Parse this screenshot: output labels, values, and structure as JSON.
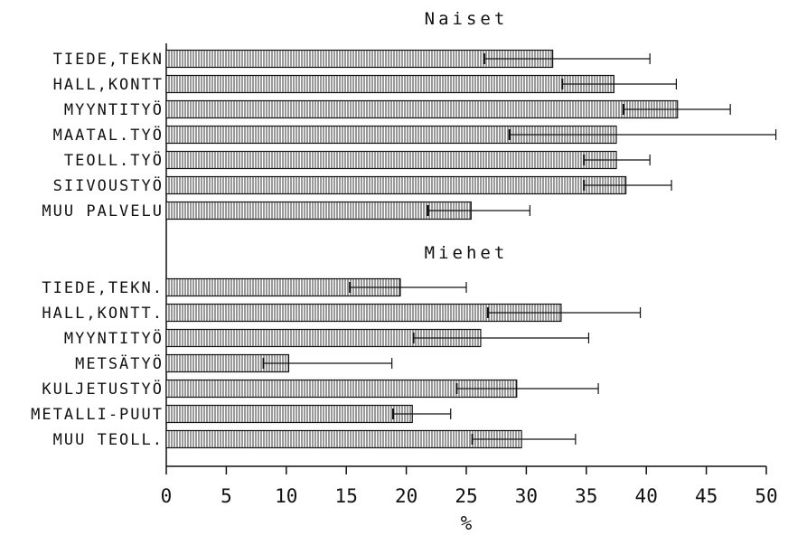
{
  "chart_data": {
    "type": "bar",
    "orientation": "horizontal",
    "xlabel": "%",
    "xlim": [
      0,
      50
    ],
    "xticks": [
      "0",
      "5",
      "10",
      "15",
      "20",
      "25",
      "30",
      "35",
      "40",
      "45",
      "50"
    ],
    "grid": false,
    "legend": "none",
    "groups": [
      {
        "name": "Naiset",
        "categories": [
          "TIEDE,TEKN",
          "HALL,KONTT",
          "MYYNTITYÖ",
          "MAATAL.TYÖ",
          "TEOLL.TYÖ",
          "SIIVOUSTYÖ",
          "MUU PALVELU"
        ],
        "values": [
          32.2,
          37.3,
          42.6,
          37.5,
          37.5,
          38.3,
          25.4
        ],
        "err_low": [
          26.5,
          33.0,
          38.1,
          28.6,
          34.8,
          34.8,
          21.8
        ],
        "err_high": [
          40.3,
          42.5,
          47.0,
          50.8,
          40.3,
          42.1,
          30.3
        ]
      },
      {
        "name": "Miehet",
        "categories": [
          "TIEDE,TEKN.",
          "HALL,KONTT.",
          "MYYNTITYÖ",
          "METSÄTYÖ",
          "KULJETUSTYÖ",
          "METALLI-PUUT",
          "MUU TEOLL."
        ],
        "values": [
          19.5,
          32.9,
          26.2,
          10.2,
          29.2,
          20.5,
          29.6
        ],
        "err_low": [
          15.3,
          26.8,
          20.6,
          8.1,
          24.2,
          18.9,
          25.5
        ],
        "err_high": [
          25.0,
          39.5,
          35.2,
          18.8,
          36.0,
          23.7,
          34.1
        ]
      }
    ]
  }
}
